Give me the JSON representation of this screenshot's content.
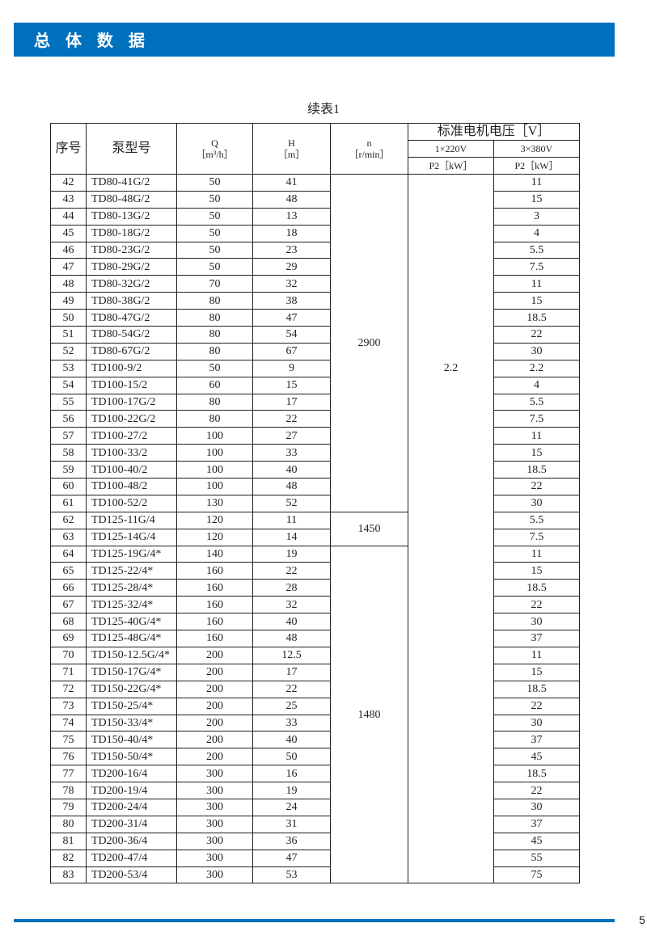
{
  "header": {
    "title": "总 体 数 据",
    "accent": "#0071bc"
  },
  "caption": "续表1",
  "columns": {
    "no": "序号",
    "model": "泵型号",
    "q": "Q",
    "q_unit": "［m³/h］",
    "h": "H",
    "h_unit": "［m］",
    "n": "n",
    "n_unit": "［r/min］",
    "voltage": "标准电机电压［V］",
    "single_phase": "1×220V",
    "three_phase": "3×380V",
    "p2_single": "P2［kW］",
    "p2_three": "P2［kW］"
  },
  "rows": [
    [
      "42",
      "TD80-41G/2",
      "50",
      "41",
      "",
      "11"
    ],
    [
      "43",
      "TD80-48G/2",
      "50",
      "48",
      "",
      "15"
    ],
    [
      "44",
      "TD80-13G/2",
      "50",
      "13",
      "",
      "3"
    ],
    [
      "45",
      "TD80-18G/2",
      "50",
      "18",
      "",
      "4"
    ],
    [
      "46",
      "TD80-23G/2",
      "50",
      "23",
      "",
      "5.5"
    ],
    [
      "47",
      "TD80-29G/2",
      "50",
      "29",
      "",
      "7.5"
    ],
    [
      "48",
      "TD80-32G/2",
      "70",
      "32",
      "",
      "11"
    ],
    [
      "49",
      "TD80-38G/2",
      "80",
      "38",
      "",
      "15"
    ],
    [
      "50",
      "TD80-47G/2",
      "80",
      "47",
      "",
      "18.5"
    ],
    [
      "51",
      "TD80-54G/2",
      "80",
      "54",
      "",
      "22"
    ],
    [
      "52",
      "TD80-67G/2",
      "80",
      "67",
      "",
      "30"
    ],
    [
      "53",
      "TD100-9/2",
      "50",
      "9",
      "2.2",
      "2.2"
    ],
    [
      "54",
      "TD100-15/2",
      "60",
      "15",
      "",
      "4"
    ],
    [
      "55",
      "TD100-17G/2",
      "80",
      "17",
      "",
      "5.5"
    ],
    [
      "56",
      "TD100-22G/2",
      "80",
      "22",
      "",
      "7.5"
    ],
    [
      "57",
      "TD100-27/2",
      "100",
      "27",
      "",
      "11"
    ],
    [
      "58",
      "TD100-33/2",
      "100",
      "33",
      "",
      "15"
    ],
    [
      "59",
      "TD100-40/2",
      "100",
      "40",
      "",
      "18.5"
    ],
    [
      "60",
      "TD100-48/2",
      "100",
      "48",
      "",
      "22"
    ],
    [
      "61",
      "TD100-52/2",
      "130",
      "52",
      "",
      "30"
    ],
    [
      "62",
      "TD125-11G/4",
      "120",
      "11",
      "",
      "5.5"
    ],
    [
      "63",
      "TD125-14G/4",
      "120",
      "14",
      "",
      "7.5"
    ],
    [
      "64",
      "TD125-19G/4*",
      "140",
      "19",
      "",
      "11"
    ],
    [
      "65",
      "TD125-22/4*",
      "160",
      "22",
      "",
      "15"
    ],
    [
      "66",
      "TD125-28/4*",
      "160",
      "28",
      "",
      "18.5"
    ],
    [
      "67",
      "TD125-32/4*",
      "160",
      "32",
      "",
      "22"
    ],
    [
      "68",
      "TD125-40G/4*",
      "160",
      "40",
      "",
      "30"
    ],
    [
      "69",
      "TD125-48G/4*",
      "160",
      "48",
      "",
      "37"
    ],
    [
      "70",
      "TD150-12.5G/4*",
      "200",
      "12.5",
      "",
      "11"
    ],
    [
      "71",
      "TD150-17G/4*",
      "200",
      "17",
      "",
      "15"
    ],
    [
      "72",
      "TD150-22G/4*",
      "200",
      "22",
      "",
      "18.5"
    ],
    [
      "73",
      "TD150-25/4*",
      "200",
      "25",
      "",
      "22"
    ],
    [
      "74",
      "TD150-33/4*",
      "200",
      "33",
      "",
      "30"
    ],
    [
      "75",
      "TD150-40/4*",
      "200",
      "40",
      "",
      "37"
    ],
    [
      "76",
      "TD150-50/4*",
      "200",
      "50",
      "",
      "45"
    ],
    [
      "77",
      "TD200-16/4",
      "300",
      "16",
      "",
      "18.5"
    ],
    [
      "78",
      "TD200-19/4",
      "300",
      "19",
      "",
      "22"
    ],
    [
      "79",
      "TD200-24/4",
      "300",
      "24",
      "",
      "30"
    ],
    [
      "80",
      "TD200-31/4",
      "300",
      "31",
      "",
      "37"
    ],
    [
      "81",
      "TD200-36/4",
      "300",
      "36",
      "",
      "45"
    ],
    [
      "82",
      "TD200-47/4",
      "300",
      "47",
      "",
      "55"
    ],
    [
      "83",
      "TD200-53/4",
      "300",
      "53",
      "",
      "75"
    ]
  ],
  "speed_groups": [
    {
      "value": "2900",
      "rows": 20
    },
    {
      "value": "1450",
      "rows": 2
    },
    {
      "value": "1480",
      "rows": 20
    }
  ],
  "page_number": "5"
}
